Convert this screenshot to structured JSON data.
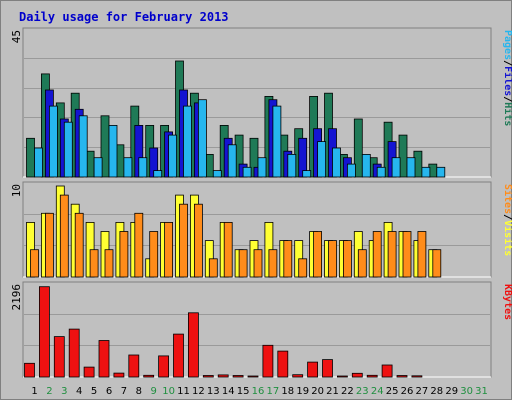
{
  "chart_data": {
    "type": "bar",
    "title": "Daily usage for February 2013",
    "colors": {
      "title": "#0000cc",
      "background": "#c0c0c0",
      "hits": "#1f7a57",
      "files": "#1414d2",
      "pages": "#26b6ee",
      "visits": "#ffff33",
      "sites": "#ff8c1a",
      "kbytes": "#ee1111",
      "weekend_label": "#1f8f3f",
      "weekday_label": "#000000"
    },
    "days": [
      "1",
      "2",
      "3",
      "4",
      "5",
      "6",
      "7",
      "8",
      "9",
      "10",
      "11",
      "12",
      "13",
      "14",
      "15",
      "16",
      "17",
      "18",
      "19",
      "20",
      "21",
      "22",
      "23",
      "24",
      "25",
      "26",
      "27",
      "28",
      "29",
      "30",
      "31"
    ],
    "weekend_days": [
      "2",
      "3",
      "9",
      "10",
      "16",
      "17",
      "23",
      "24",
      "30",
      "31"
    ],
    "panels": [
      {
        "name": "traffic-hits-files-pages",
        "ymax_label": "45",
        "ymax": 45,
        "legend": [
          "Pages",
          "/",
          "Files",
          "/",
          "Hits"
        ],
        "series": [
          {
            "name": "Hits",
            "values": [
              12,
              32,
              23,
              26,
              8,
              19,
              10,
              22,
              16,
              16,
              36,
              26,
              7,
              16,
              13,
              12,
              25,
              13,
              15,
              25,
              26,
              7,
              18,
              6,
              17,
              13,
              8,
              4,
              0,
              0,
              0
            ]
          },
          {
            "name": "Files",
            "values": [
              0,
              27,
              18,
              21,
              0,
              0,
              0,
              16,
              9,
              14,
              27,
              23,
              0,
              12,
              4,
              3,
              24,
              8,
              12,
              15,
              15,
              6,
              0,
              4,
              11,
              0,
              0,
              0,
              0,
              0,
              0
            ]
          },
          {
            "name": "Pages",
            "values": [
              9,
              22,
              17,
              19,
              6,
              16,
              6,
              6,
              2,
              13,
              22,
              24,
              2,
              10,
              3,
              6,
              22,
              7,
              2,
              11,
              9,
              4,
              7,
              3,
              6,
              6,
              3,
              3,
              0,
              0,
              0
            ]
          }
        ]
      },
      {
        "name": "visits-sites",
        "ymax_label": "10",
        "ymax": 10,
        "legend": [
          "Sites",
          "/",
          "Visits"
        ],
        "series": [
          {
            "name": "Visits",
            "values": [
              6,
              7,
              10,
              8,
              6,
              5,
              6,
              6,
              2,
              6,
              9,
              9,
              4,
              6,
              3,
              4,
              6,
              4,
              4,
              5,
              4,
              4,
              5,
              4,
              6,
              5,
              4,
              3,
              0,
              0,
              0
            ]
          },
          {
            "name": "Sites",
            "values": [
              3,
              7,
              9,
              7,
              3,
              3,
              5,
              7,
              5,
              6,
              8,
              8,
              2,
              6,
              3,
              3,
              3,
              4,
              2,
              5,
              4,
              4,
              3,
              5,
              5,
              5,
              5,
              3,
              0,
              0,
              0
            ]
          }
        ]
      },
      {
        "name": "kbytes",
        "ymax_label": "2196",
        "ymax": 2196,
        "legend": [
          "KBytes"
        ],
        "series": [
          {
            "name": "KBytes",
            "values": [
              330,
              2180,
              975,
              1155,
              240,
              880,
              95,
              530,
              40,
              510,
              1035,
              1550,
              35,
              50,
              35,
              20,
              765,
              625,
              55,
              360,
              420,
              25,
              90,
              40,
              290,
              35,
              30,
              0,
              0,
              0,
              0
            ]
          }
        ]
      }
    ]
  }
}
